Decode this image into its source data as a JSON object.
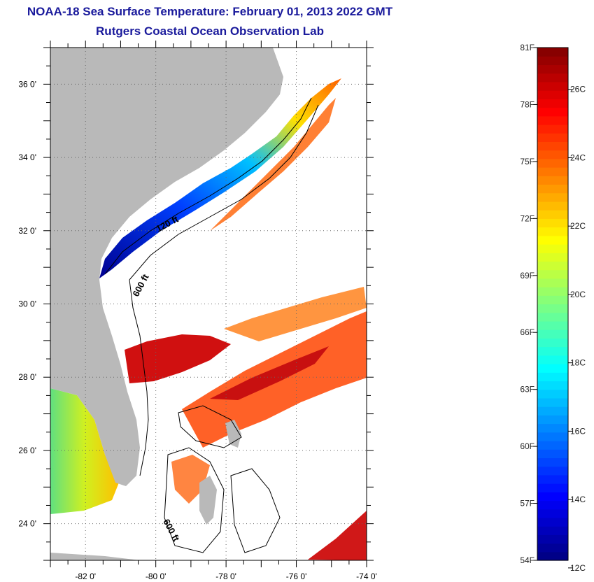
{
  "title": "NOAA-18 Sea Surface Temperature:  February 01, 2013 2022 GMT",
  "subtitle": "Rutgers Coastal Ocean Observation Lab",
  "map": {
    "lon_labels": [
      "-82 0'",
      "-80 0'",
      "-78 0'",
      "-76 0'",
      "-74 0'"
    ],
    "lon_values": [
      -82,
      -80,
      -78,
      -76,
      -74
    ],
    "lat_labels": [
      "36 0'",
      "34 0'",
      "32 0'",
      "30 0'",
      "28 0'",
      "26 0'",
      "24 0'"
    ],
    "lat_values": [
      36,
      34,
      32,
      30,
      28,
      26,
      24
    ],
    "lon_range": [
      -83.0,
      -74.0
    ],
    "lat_range": [
      23.0,
      37.0
    ],
    "contour_labels": [
      "120 ft",
      "600 ft",
      "600 ft"
    ],
    "colors": {
      "land": "#b9b9b9",
      "no_data": "#ffffff"
    }
  },
  "colorbar": {
    "f_labels": [
      "81F",
      "78F",
      "75F",
      "72F",
      "69F",
      "66F",
      "63F",
      "60F",
      "57F",
      "54F"
    ],
    "f_values": [
      81,
      78,
      75,
      72,
      69,
      66,
      63,
      60,
      57,
      54
    ],
    "c_labels": [
      "26C",
      "24C",
      "22C",
      "20C",
      "18C",
      "16C",
      "14C",
      "12C"
    ],
    "c_values": [
      26,
      24,
      22,
      20,
      18,
      16,
      14,
      12
    ],
    "range_f": [
      54,
      81
    ],
    "palette": [
      "#000080",
      "#0000ff",
      "#0080ff",
      "#00ffff",
      "#80ff80",
      "#ffff00",
      "#ff8000",
      "#ff0000",
      "#800000"
    ]
  }
}
